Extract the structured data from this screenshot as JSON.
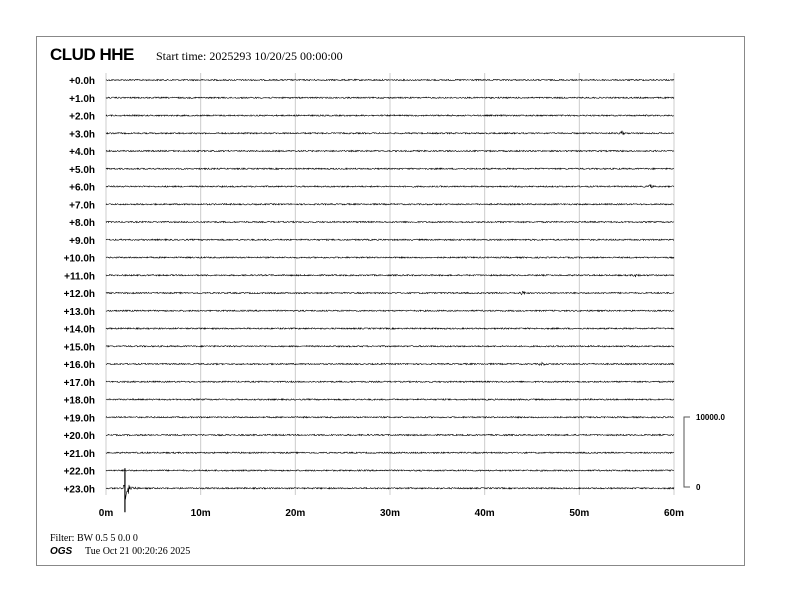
{
  "header": {
    "station": "CLUD HHE",
    "start_time": "Start time: 2025293 10/20/25 00:00:00"
  },
  "footer": {
    "filter": "Filter: BW 0.5 5 0.0 0",
    "org": "OGS",
    "printed": "Tue Oct 21 00:20:26 2025"
  },
  "chart_data": {
    "type": "line",
    "title": "",
    "row_labels": [
      "+0.0h",
      "+1.0h",
      "+2.0h",
      "+3.0h",
      "+4.0h",
      "+5.0h",
      "+6.0h",
      "+7.0h",
      "+8.0h",
      "+9.0h",
      "+10.0h",
      "+11.0h",
      "+12.0h",
      "+13.0h",
      "+14.0h",
      "+15.0h",
      "+16.0h",
      "+17.0h",
      "+18.0h",
      "+19.0h",
      "+20.0h",
      "+21.0h",
      "+22.0h",
      "+23.0h"
    ],
    "x_ticks": [
      "0m",
      "10m",
      "20m",
      "30m",
      "40m",
      "50m",
      "60m"
    ],
    "xlim": [
      0,
      60
    ],
    "grid": true,
    "scale": {
      "top": "10000.0",
      "bottom": "0"
    },
    "events": [
      {
        "hour": 23,
        "minute": 2,
        "amplitude": "large"
      },
      {
        "hour": 11,
        "minute": 56,
        "amplitude": "small"
      },
      {
        "hour": 12,
        "minute": 44,
        "amplitude": "small"
      },
      {
        "hour": 6,
        "minute": 57.5,
        "amplitude": "small"
      },
      {
        "hour": 3,
        "minute": 54.5,
        "amplitude": "small"
      },
      {
        "hour": 16,
        "minute": 46,
        "amplitude": "small"
      }
    ],
    "trace_color": "#000000",
    "grid_color": "#cccccc"
  }
}
